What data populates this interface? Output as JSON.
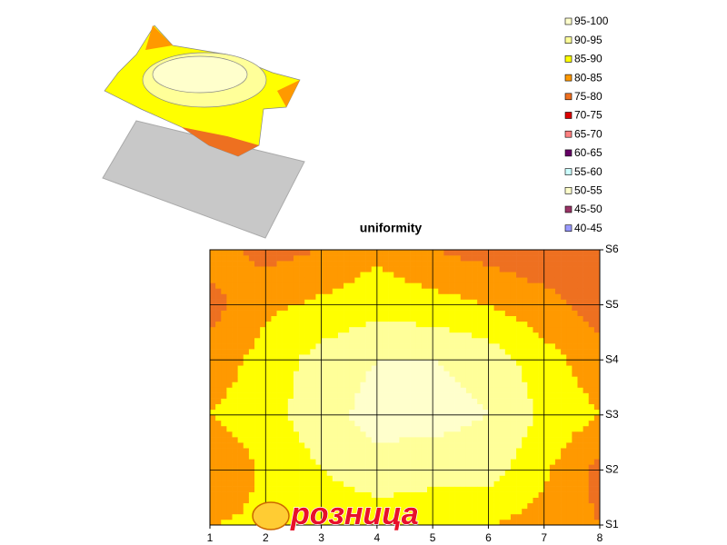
{
  "chart_data": {
    "type": "contour",
    "title": "uniformity",
    "categories": [
      "1",
      "2",
      "3",
      "4",
      "5",
      "6",
      "7",
      "8"
    ],
    "series_names": [
      "S1",
      "S2",
      "S3",
      "S4",
      "S5",
      "S6"
    ],
    "z": [
      [
        85,
        86,
        86,
        87,
        86,
        85,
        83,
        80
      ],
      [
        80,
        86,
        90,
        93,
        92,
        92,
        86,
        78
      ],
      [
        85,
        88,
        93,
        97,
        97,
        95,
        89,
        85
      ],
      [
        82,
        87,
        92,
        95,
        95,
        93,
        87,
        82
      ],
      [
        78,
        84,
        86,
        88,
        87,
        85,
        82,
        77
      ],
      [
        83,
        78,
        80,
        84,
        80,
        78,
        76,
        80
      ]
    ],
    "bands": [
      {
        "label": "95-100",
        "min": 95,
        "max": 100,
        "color": "#ffffcc"
      },
      {
        "label": "90-95",
        "min": 90,
        "max": 95,
        "color": "#ffff99"
      },
      {
        "label": "85-90",
        "min": 85,
        "max": 90,
        "color": "#ffff00"
      },
      {
        "label": "80-85",
        "min": 80,
        "max": 85,
        "color": "#ff9900"
      },
      {
        "label": "75-80",
        "min": 75,
        "max": 80,
        "color": "#ee7020"
      },
      {
        "label": "70-75",
        "min": 70,
        "max": 75,
        "color": "#dd0000"
      },
      {
        "label": "65-70",
        "min": 65,
        "max": 70,
        "color": "#ff8080"
      },
      {
        "label": "60-65",
        "min": 60,
        "max": 65,
        "color": "#660066"
      },
      {
        "label": "55-60",
        "min": 55,
        "max": 60,
        "color": "#ccffff"
      },
      {
        "label": "50-55",
        "min": 50,
        "max": 55,
        "color": "#ffffcc"
      },
      {
        "label": "45-50",
        "min": 45,
        "max": 50,
        "color": "#993366"
      },
      {
        "label": "40-45",
        "min": 40,
        "max": 45,
        "color": "#9999ff"
      }
    ],
    "watermark": "розница"
  }
}
